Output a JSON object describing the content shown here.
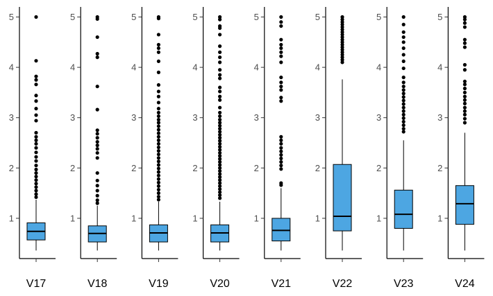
{
  "chart_data": {
    "type": "boxplot",
    "ylim": [
      0.2,
      5.2
    ],
    "y_ticks": [
      1,
      2,
      3,
      4,
      5
    ],
    "grid": false,
    "colors": {
      "box_fill": "#4da6e2",
      "stroke": "#000000",
      "outlier": "#000000"
    },
    "panels": [
      {
        "name": "V17",
        "label": "V17",
        "min": 0.36,
        "q1": 0.57,
        "median": 0.74,
        "q3": 0.91,
        "max": 1.37,
        "outliers": [
          5.0,
          4.13,
          3.82,
          3.75,
          3.66,
          3.44,
          3.33,
          3.18,
          3.05,
          2.94,
          2.7,
          2.62,
          2.55,
          2.48,
          2.4,
          2.31,
          2.22,
          2.14,
          2.05,
          1.97,
          1.9,
          1.83,
          1.76,
          1.69,
          1.62,
          1.55,
          1.48,
          1.42
        ]
      },
      {
        "name": "V18",
        "label": "V18",
        "min": 0.36,
        "q1": 0.53,
        "median": 0.7,
        "q3": 0.85,
        "max": 1.25,
        "outliers": [
          5.0,
          4.96,
          4.6,
          4.27,
          4.2,
          3.62,
          3.16,
          2.75,
          2.68,
          2.6,
          2.52,
          2.45,
          2.38,
          2.3,
          2.2,
          1.9,
          1.75,
          1.65,
          1.55,
          1.45,
          1.36,
          1.3
        ]
      },
      {
        "name": "V19",
        "label": "V19",
        "min": 0.36,
        "q1": 0.53,
        "median": 0.71,
        "q3": 0.87,
        "max": 1.33,
        "outliers": [
          5.0,
          4.97,
          4.65,
          4.45,
          4.38,
          4.3,
          4.12,
          3.9,
          3.65,
          3.52,
          3.42,
          3.3,
          3.18,
          3.1,
          3.03,
          2.96,
          2.9,
          2.83,
          2.76,
          2.69,
          2.62,
          2.55,
          2.48,
          2.41,
          2.34,
          2.27,
          2.2,
          2.13,
          2.06,
          1.99,
          1.92,
          1.85,
          1.78,
          1.71,
          1.64,
          1.57,
          1.5,
          1.43,
          1.37
        ]
      },
      {
        "name": "V20",
        "label": "V20",
        "min": 0.36,
        "q1": 0.53,
        "median": 0.71,
        "q3": 0.87,
        "max": 1.33,
        "outliers": [
          5.0,
          4.95,
          4.82,
          4.78,
          4.65,
          4.42,
          4.3,
          4.2,
          4.1,
          3.95,
          3.85,
          3.78,
          3.6,
          3.52,
          3.42,
          3.35,
          3.2,
          3.1,
          3.03,
          2.96,
          2.9,
          2.84,
          2.78,
          2.72,
          2.66,
          2.6,
          2.54,
          2.48,
          2.42,
          2.36,
          2.3,
          2.24,
          2.18,
          2.12,
          2.06,
          2.0,
          1.94,
          1.88,
          1.82,
          1.76,
          1.7,
          1.64,
          1.58,
          1.52,
          1.46,
          1.4
        ]
      },
      {
        "name": "V21",
        "label": "V21",
        "min": 0.36,
        "q1": 0.55,
        "median": 0.76,
        "q3": 1.0,
        "max": 1.6,
        "outliers": [
          5.0,
          4.9,
          4.82,
          4.55,
          4.45,
          4.38,
          4.3,
          4.22,
          4.1,
          3.8,
          3.7,
          3.62,
          3.55,
          3.4,
          3.33,
          2.62,
          2.55,
          2.48,
          2.4,
          2.33,
          2.26,
          2.19,
          2.12,
          2.05,
          1.98,
          1.7,
          1.66
        ]
      },
      {
        "name": "V22",
        "label": "V22",
        "min": 0.36,
        "q1": 0.75,
        "median": 1.04,
        "q3": 2.07,
        "max": 3.76,
        "outliers": [
          5.0,
          4.95,
          4.9,
          4.85,
          4.8,
          4.75,
          4.7,
          4.65,
          4.6,
          4.55,
          4.5,
          4.45,
          4.4,
          4.35,
          4.3,
          4.25,
          4.2,
          4.15,
          4.1
        ]
      },
      {
        "name": "V23",
        "label": "V23",
        "min": 0.36,
        "q1": 0.8,
        "median": 1.08,
        "q3": 1.56,
        "max": 2.55,
        "outliers": [
          5.0,
          4.85,
          4.7,
          4.6,
          4.5,
          4.38,
          4.25,
          4.12,
          3.98,
          3.8,
          3.7,
          3.62,
          3.55,
          3.48,
          3.41,
          3.34,
          3.27,
          3.2,
          3.13,
          3.06,
          2.99,
          2.92,
          2.85,
          2.78,
          2.72
        ]
      },
      {
        "name": "V24",
        "label": "V24",
        "min": 0.36,
        "q1": 0.88,
        "median": 1.29,
        "q3": 1.65,
        "max": 2.7,
        "outliers": [
          5.0,
          4.95,
          4.88,
          4.8,
          4.55,
          4.48,
          4.4,
          4.05,
          3.95,
          3.72,
          3.66,
          3.58,
          3.5,
          3.42,
          3.35,
          3.28,
          3.2,
          3.13,
          3.06,
          2.98,
          2.9
        ]
      }
    ]
  }
}
